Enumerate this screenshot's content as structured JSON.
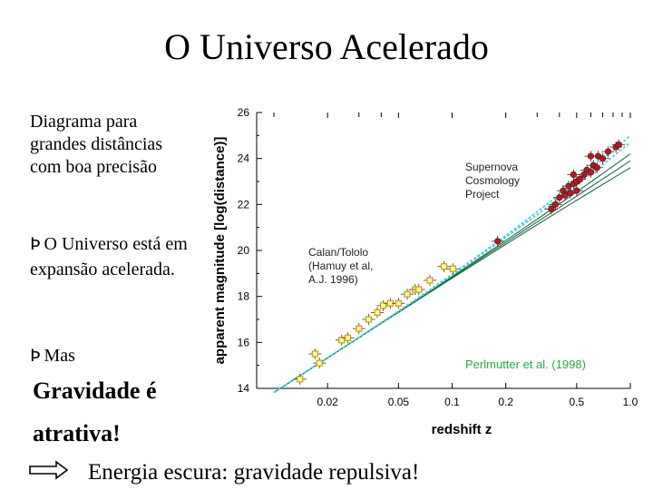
{
  "slide": {
    "title": "O Universo Acelerado",
    "description": "Diagrama para grandes distâncias com boa precisão",
    "bullets": [
      {
        "marker": "Þ",
        "text": "O Universo está em expansão acelerada."
      },
      {
        "marker": "Þ",
        "text": "Mas"
      }
    ],
    "emphasis_lines": [
      "Gravidade é",
      "atrativa!"
    ],
    "conclusion": "Energia escura: gravidade repulsiva!",
    "arrow_icon": "double-line-right-arrow-icon"
  },
  "chart_data": {
    "type": "scatter",
    "title": "",
    "xlabel": "redshift z",
    "ylabel": "apparent magnitude [log(distance)]",
    "x_scale": "log",
    "xlim": [
      0.008,
      1.0
    ],
    "ylim": [
      14,
      26
    ],
    "x_ticks": [
      0.02,
      0.05,
      0.1,
      0.2,
      0.5,
      1.0
    ],
    "x_tick_labels": [
      "0.02",
      "0.05",
      "0.1",
      "0.2",
      "0.5",
      "1.0"
    ],
    "y_ticks": [
      14,
      16,
      18,
      20,
      22,
      24,
      26
    ],
    "y_tick_labels": [
      "14",
      "16",
      "18",
      "20",
      "22",
      "24",
      "26"
    ],
    "grid": false,
    "annotations": {
      "supernova": [
        "Supernova",
        "Cosmology",
        "Project"
      ],
      "calan": [
        "Calan/Tololo",
        "(Hamuy et al,",
        "A.J. 1996)"
      ],
      "citation": "Perlmutter et al. (1998)"
    },
    "series": [
      {
        "name": "Calan/Tololo",
        "marker": "open-square",
        "color": "#c8a000",
        "points": [
          {
            "x": 0.014,
            "y": 14.4
          },
          {
            "x": 0.017,
            "y": 15.5
          },
          {
            "x": 0.018,
            "y": 15.1
          },
          {
            "x": 0.024,
            "y": 16.1
          },
          {
            "x": 0.026,
            "y": 16.2
          },
          {
            "x": 0.03,
            "y": 16.6
          },
          {
            "x": 0.034,
            "y": 17.0
          },
          {
            "x": 0.038,
            "y": 17.3
          },
          {
            "x": 0.041,
            "y": 17.6
          },
          {
            "x": 0.045,
            "y": 17.7
          },
          {
            "x": 0.05,
            "y": 17.7
          },
          {
            "x": 0.056,
            "y": 18.1
          },
          {
            "x": 0.062,
            "y": 18.3
          },
          {
            "x": 0.065,
            "y": 18.3
          },
          {
            "x": 0.075,
            "y": 18.7
          },
          {
            "x": 0.09,
            "y": 19.3
          },
          {
            "x": 0.101,
            "y": 19.2
          }
        ]
      },
      {
        "name": "Supernova Cosmology Project",
        "marker": "filled-circle",
        "color": "#b01c24",
        "points": [
          {
            "x": 0.18,
            "y": 20.4
          },
          {
            "x": 0.36,
            "y": 21.8
          },
          {
            "x": 0.38,
            "y": 22.0
          },
          {
            "x": 0.4,
            "y": 22.3
          },
          {
            "x": 0.42,
            "y": 22.6
          },
          {
            "x": 0.43,
            "y": 22.4
          },
          {
            "x": 0.45,
            "y": 22.8
          },
          {
            "x": 0.46,
            "y": 22.5
          },
          {
            "x": 0.48,
            "y": 22.9
          },
          {
            "x": 0.5,
            "y": 23.0
          },
          {
            "x": 0.5,
            "y": 22.6
          },
          {
            "x": 0.52,
            "y": 23.1
          },
          {
            "x": 0.55,
            "y": 23.3
          },
          {
            "x": 0.57,
            "y": 23.5
          },
          {
            "x": 0.6,
            "y": 23.4
          },
          {
            "x": 0.62,
            "y": 23.7
          },
          {
            "x": 0.65,
            "y": 23.6
          },
          {
            "x": 0.66,
            "y": 24.1
          },
          {
            "x": 0.7,
            "y": 24.0
          },
          {
            "x": 0.75,
            "y": 24.3
          },
          {
            "x": 0.83,
            "y": 24.5
          },
          {
            "x": 0.86,
            "y": 24.6
          },
          {
            "x": 0.6,
            "y": 24.1
          },
          {
            "x": 0.48,
            "y": 23.3
          }
        ]
      }
    ],
    "model_curves": [
      {
        "style": "solid",
        "color": "#1f6b4a",
        "points": [
          {
            "x": 0.01,
            "y": 13.82
          },
          {
            "x": 1.0,
            "y": 23.6
          }
        ]
      },
      {
        "style": "solid",
        "color": "#1f6b4a",
        "points": [
          {
            "x": 0.01,
            "y": 13.82
          },
          {
            "x": 1.0,
            "y": 23.9
          }
        ]
      },
      {
        "style": "solid",
        "color": "#1f6b4a",
        "points": [
          {
            "x": 0.01,
            "y": 13.82
          },
          {
            "x": 1.0,
            "y": 24.2
          }
        ]
      },
      {
        "style": "dashed",
        "color": "#4fd0d8",
        "points": [
          {
            "x": 0.01,
            "y": 13.82
          },
          {
            "x": 1.0,
            "y": 24.7
          }
        ]
      },
      {
        "style": "dashed",
        "color": "#4fd0d8",
        "points": [
          {
            "x": 0.01,
            "y": 13.82
          },
          {
            "x": 1.0,
            "y": 25.0
          }
        ]
      }
    ]
  }
}
